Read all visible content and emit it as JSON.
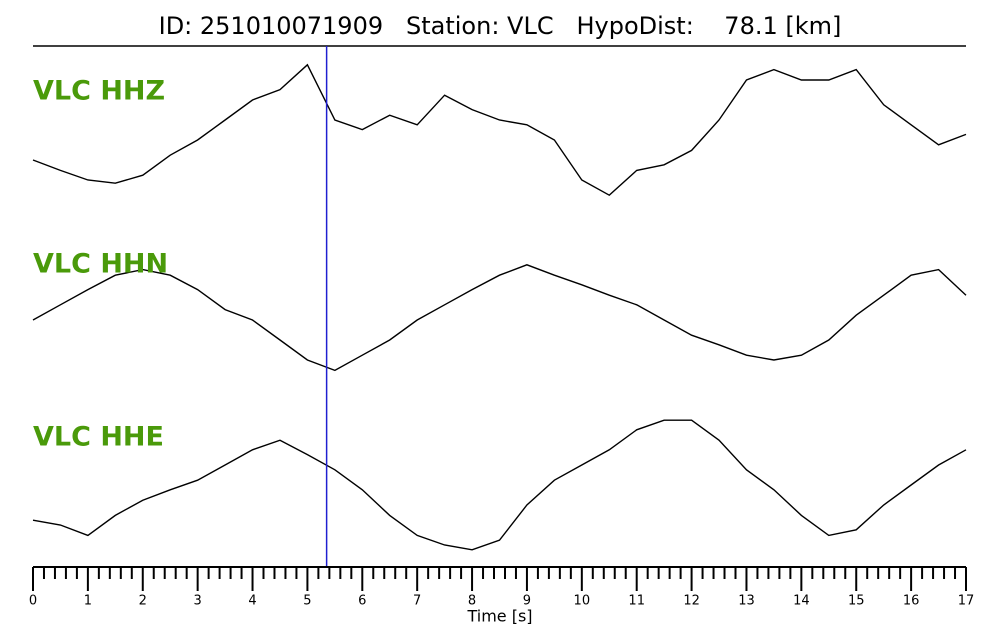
{
  "chart_data": {
    "type": "seismogram",
    "title": "ID: 251010071909   Station: VLC   HypoDist:    78.1 [km]",
    "xlabel": "Time [s]",
    "xlim": [
      0,
      17
    ],
    "xticks": [
      0,
      1,
      2,
      3,
      4,
      5,
      6,
      7,
      8,
      9,
      10,
      11,
      12,
      13,
      14,
      15,
      16,
      17
    ],
    "xminorticks": [
      0.2,
      0.4,
      0.6,
      0.8,
      1.2,
      1.4,
      1.6,
      1.8,
      2.2,
      2.4,
      2.6,
      2.8,
      3.2,
      3.4,
      3.6,
      3.8,
      4.2,
      4.4,
      4.6,
      4.8,
      5.2,
      5.4,
      5.6,
      5.8,
      6.2,
      6.4,
      6.6,
      6.8,
      7.2,
      7.4,
      7.6,
      7.8,
      8.2,
      8.4,
      8.6,
      8.8,
      9.2,
      9.4,
      9.6,
      9.8,
      10.2,
      10.4,
      10.6,
      10.8,
      11.2,
      11.4,
      11.6,
      11.8,
      12.2,
      12.4,
      12.6,
      12.8,
      13.2,
      13.4,
      13.6,
      13.8,
      14.2,
      14.4,
      14.6,
      14.8,
      15.2,
      15.4,
      15.6,
      15.8,
      16.2,
      16.4,
      16.6,
      16.8
    ],
    "pick_x": 5.35,
    "pick_color": "#1f1fd0",
    "label_color": "#4a9a0a",
    "x": [
      0,
      0.5,
      1,
      1.5,
      2,
      2.5,
      3,
      3.5,
      4,
      4.5,
      5,
      5.5,
      6,
      6.5,
      7,
      7.5,
      8,
      8.5,
      9,
      9.5,
      10,
      10.5,
      11,
      11.5,
      12,
      12.5,
      13,
      13.5,
      14,
      14.5,
      15,
      15.5,
      16,
      16.5,
      17
    ],
    "series": [
      {
        "name": "VLC HHZ",
        "color": "#000000",
        "values": [
          -0.35,
          -0.48,
          -0.6,
          -0.64,
          -0.54,
          -0.29,
          -0.1,
          0.15,
          0.4,
          0.53,
          0.84,
          0.15,
          0.03,
          0.21,
          0.09,
          0.46,
          0.28,
          0.15,
          0.09,
          -0.1,
          -0.6,
          -0.79,
          -0.48,
          -0.41,
          -0.23,
          0.15,
          0.65,
          0.78,
          0.65,
          0.65,
          0.78,
          0.34,
          0.09,
          -0.16,
          -0.03
        ]
      },
      {
        "name": "VLC HHN",
        "color": "#000000",
        "values": [
          0,
          0.19,
          0.38,
          0.56,
          0.63,
          0.56,
          0.38,
          0.13,
          0,
          -0.25,
          -0.5,
          -0.63,
          -0.44,
          -0.25,
          0,
          0.19,
          0.38,
          0.56,
          0.69,
          0.56,
          0.44,
          0.31,
          0.19,
          0,
          -0.19,
          -0.31,
          -0.44,
          -0.5,
          -0.44,
          -0.25,
          0.06,
          0.31,
          0.56,
          0.63,
          0.31
        ]
      },
      {
        "name": "VLC HHE",
        "color": "#000000",
        "values": [
          -0.44,
          -0.5,
          -0.63,
          -0.38,
          -0.19,
          -0.06,
          0.06,
          0.25,
          0.44,
          0.56,
          0.38,
          0.19,
          -0.06,
          -0.38,
          -0.63,
          -0.75,
          -0.81,
          -0.69,
          -0.25,
          0.06,
          0.25,
          0.44,
          0.69,
          0.81,
          0.81,
          0.56,
          0.19,
          -0.06,
          -0.38,
          -0.63,
          -0.56,
          -0.25,
          0,
          0.25,
          0.44
        ]
      }
    ]
  }
}
